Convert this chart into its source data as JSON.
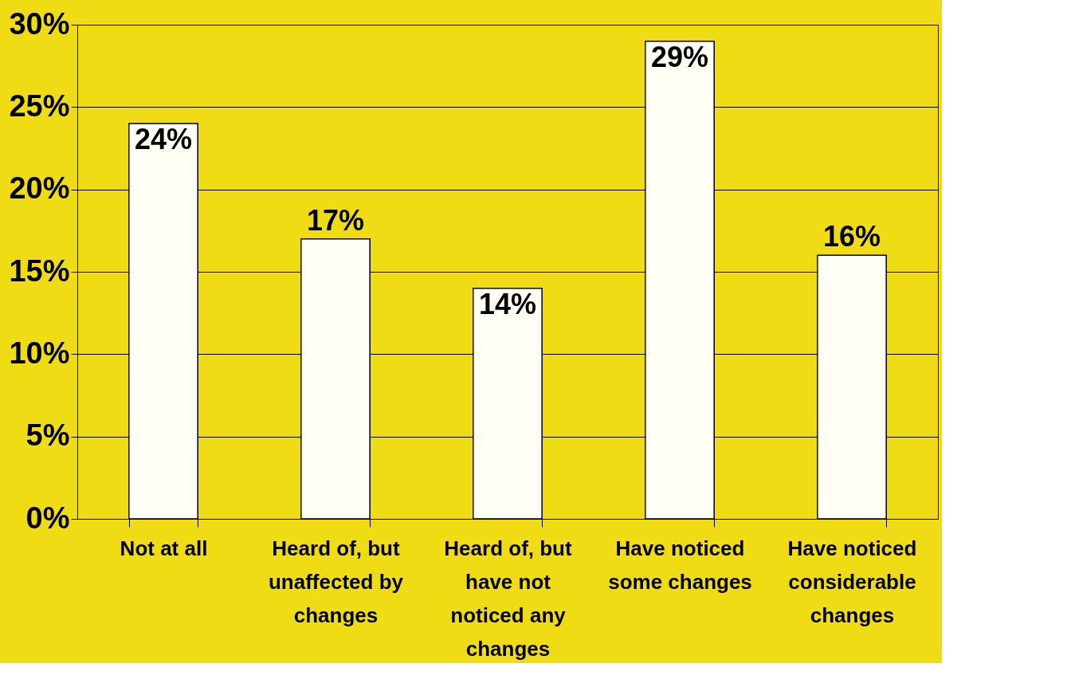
{
  "chart_data": {
    "type": "bar",
    "categories": [
      "Not at all",
      "Heard of, but unaffected by changes",
      "Heard of, but have not noticed any changes",
      "Have noticed some changes",
      "Have noticed considerable changes"
    ],
    "values": [
      24,
      17,
      14,
      29,
      16
    ],
    "value_labels": [
      "24%",
      "17%",
      "14%",
      "29%",
      "16%"
    ],
    "color": "#fffff5",
    "ylim": [
      0,
      30
    ],
    "yticks": [
      {
        "value": 0,
        "label": "0%"
      },
      {
        "value": 5,
        "label": "5%"
      },
      {
        "value": 10,
        "label": "10%"
      },
      {
        "value": 15,
        "label": "15%"
      },
      {
        "value": 20,
        "label": "20%"
      },
      {
        "value": 25,
        "label": "25%"
      },
      {
        "value": 30,
        "label": "30%"
      }
    ],
    "grid": "y"
  }
}
